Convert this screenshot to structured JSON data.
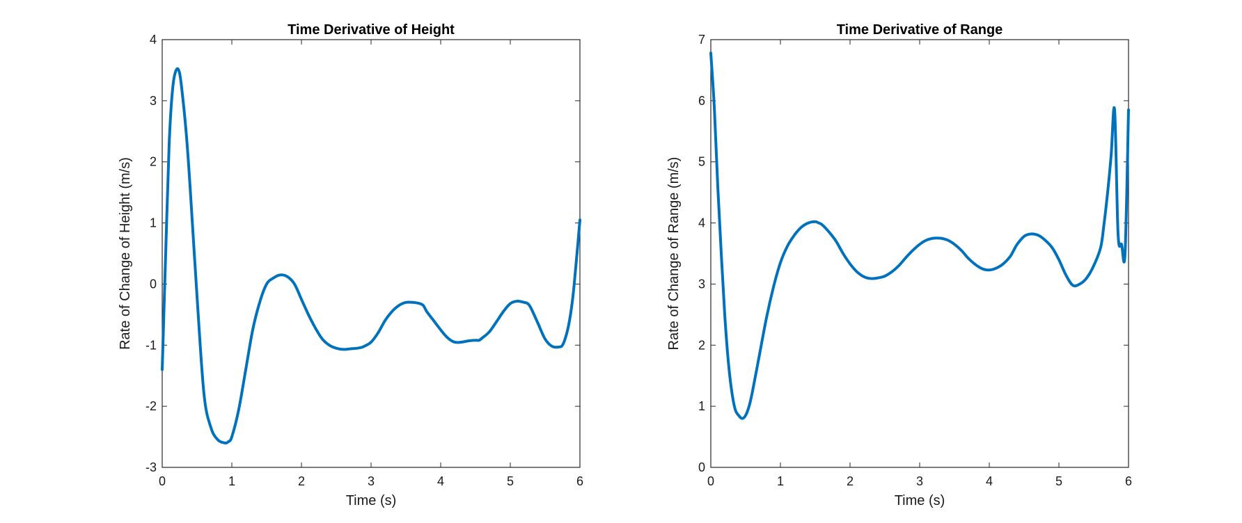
{
  "chart_data": [
    {
      "type": "line",
      "title": "Time Derivative of Height",
      "xlabel": "Time (s)",
      "ylabel": "Rate of Change of Height (m/s)",
      "xlim": [
        0,
        6
      ],
      "ylim": [
        -3,
        4
      ],
      "xticks": [
        "0",
        "1",
        "2",
        "3",
        "4",
        "5",
        "6"
      ],
      "yticks": [
        "-3",
        "-2",
        "-1",
        "0",
        "1",
        "2",
        "3",
        "4"
      ],
      "grid": false,
      "series": [
        {
          "color": "#0072bd",
          "x": [
            0.0,
            0.05,
            0.1,
            0.15,
            0.2,
            0.25,
            0.3,
            0.35,
            0.4,
            0.5,
            0.6,
            0.7,
            0.8,
            0.9,
            0.95,
            1.0,
            1.1,
            1.2,
            1.3,
            1.4,
            1.5,
            1.6,
            1.7,
            1.8,
            1.9,
            2.0,
            2.1,
            2.2,
            2.3,
            2.4,
            2.5,
            2.6,
            2.7,
            2.8,
            2.85,
            2.9,
            3.0,
            3.1,
            3.2,
            3.3,
            3.4,
            3.5,
            3.6,
            3.7,
            3.75,
            3.8,
            3.9,
            4.0,
            4.1,
            4.2,
            4.3,
            4.4,
            4.5,
            4.55,
            4.6,
            4.7,
            4.8,
            4.9,
            5.0,
            5.1,
            5.2,
            5.25,
            5.3,
            5.4,
            5.5,
            5.6,
            5.7,
            5.75,
            5.8,
            5.85,
            5.9,
            5.95,
            6.0
          ],
          "y": [
            -1.4,
            0.5,
            2.3,
            3.2,
            3.5,
            3.45,
            3.0,
            2.4,
            1.6,
            -0.2,
            -1.8,
            -2.35,
            -2.55,
            -2.6,
            -2.58,
            -2.5,
            -2.05,
            -1.4,
            -0.75,
            -0.3,
            -0.0,
            0.1,
            0.15,
            0.12,
            0.0,
            -0.25,
            -0.5,
            -0.72,
            -0.9,
            -1.0,
            -1.05,
            -1.07,
            -1.06,
            -1.05,
            -1.04,
            -1.02,
            -0.95,
            -0.8,
            -0.6,
            -0.45,
            -0.35,
            -0.3,
            -0.3,
            -0.32,
            -0.35,
            -0.45,
            -0.6,
            -0.75,
            -0.88,
            -0.95,
            -0.95,
            -0.93,
            -0.92,
            -0.92,
            -0.88,
            -0.78,
            -0.62,
            -0.45,
            -0.32,
            -0.28,
            -0.3,
            -0.32,
            -0.4,
            -0.65,
            -0.9,
            -1.02,
            -1.03,
            -1.0,
            -0.85,
            -0.6,
            -0.2,
            0.4,
            1.05
          ]
        }
      ]
    },
    {
      "type": "line",
      "title": "Time Derivative of Range",
      "xlabel": "Time (s)",
      "ylabel": "Rate of Change of Range (m/s)",
      "xlim": [
        0,
        6
      ],
      "ylim": [
        0,
        7
      ],
      "xticks": [
        "0",
        "1",
        "2",
        "3",
        "4",
        "5",
        "6"
      ],
      "yticks": [
        "0",
        "1",
        "2",
        "3",
        "4",
        "5",
        "6",
        "7"
      ],
      "grid": false,
      "series": [
        {
          "color": "#0072bd",
          "x": [
            0.0,
            0.05,
            0.1,
            0.15,
            0.2,
            0.25,
            0.3,
            0.35,
            0.4,
            0.45,
            0.5,
            0.55,
            0.6,
            0.7,
            0.8,
            0.9,
            1.0,
            1.1,
            1.2,
            1.3,
            1.4,
            1.5,
            1.55,
            1.6,
            1.7,
            1.8,
            1.9,
            2.0,
            2.1,
            2.2,
            2.3,
            2.4,
            2.5,
            2.6,
            2.7,
            2.8,
            2.9,
            3.0,
            3.1,
            3.2,
            3.3,
            3.4,
            3.5,
            3.6,
            3.7,
            3.8,
            3.9,
            4.0,
            4.1,
            4.2,
            4.3,
            4.35,
            4.4,
            4.5,
            4.6,
            4.7,
            4.8,
            4.9,
            5.0,
            5.1,
            5.2,
            5.3,
            5.4,
            5.5,
            5.6,
            5.65,
            5.7,
            5.75,
            5.8,
            5.85,
            5.9,
            5.95,
            6.0
          ],
          "y": [
            6.78,
            5.9,
            4.6,
            3.5,
            2.5,
            1.75,
            1.25,
            0.95,
            0.85,
            0.8,
            0.85,
            1.0,
            1.25,
            1.85,
            2.45,
            2.95,
            3.35,
            3.62,
            3.8,
            3.93,
            4.0,
            4.02,
            4.0,
            3.97,
            3.85,
            3.7,
            3.5,
            3.33,
            3.2,
            3.12,
            3.09,
            3.1,
            3.13,
            3.2,
            3.3,
            3.43,
            3.55,
            3.65,
            3.72,
            3.75,
            3.75,
            3.72,
            3.65,
            3.55,
            3.42,
            3.32,
            3.25,
            3.23,
            3.26,
            3.33,
            3.45,
            3.55,
            3.65,
            3.78,
            3.82,
            3.8,
            3.72,
            3.6,
            3.4,
            3.15,
            2.98,
            3.0,
            3.1,
            3.3,
            3.6,
            4.0,
            4.5,
            5.1,
            5.85,
            3.82,
            3.65,
            3.5,
            5.85
          ]
        }
      ]
    }
  ]
}
